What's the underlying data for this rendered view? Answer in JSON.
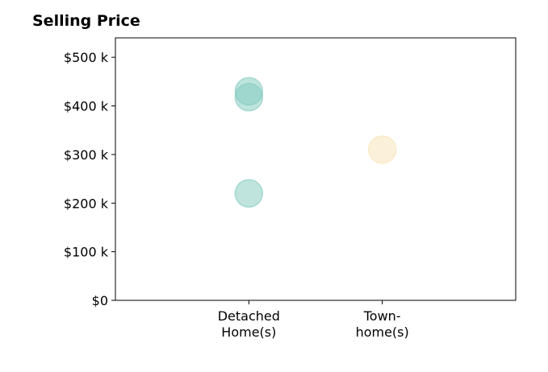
{
  "chart_data": {
    "type": "scatter",
    "title": "Selling Price",
    "xlabel": "",
    "ylabel": "",
    "categories": [
      [
        "Detached",
        "Home(s)"
      ],
      [
        "Town-",
        "home(s)"
      ]
    ],
    "xlim": [
      -1,
      2
    ],
    "ylim": [
      0,
      540000
    ],
    "yticks": [
      0,
      100000,
      200000,
      300000,
      400000,
      500000
    ],
    "ytick_labels": [
      "$0",
      "$100 k",
      "$200 k",
      "$300 k",
      "$400 k",
      "$500 k"
    ],
    "grid": false,
    "legend": "none",
    "series": [
      {
        "category_index": 0,
        "color": "#7fc9bd",
        "points": [
          {
            "x": 0,
            "y": 430000
          },
          {
            "x": 0,
            "y": 418000
          },
          {
            "x": 0,
            "y": 220000
          }
        ]
      },
      {
        "category_index": 1,
        "color": "#f8e2b4",
        "points": [
          {
            "x": 1,
            "y": 310000
          }
        ]
      }
    ]
  }
}
